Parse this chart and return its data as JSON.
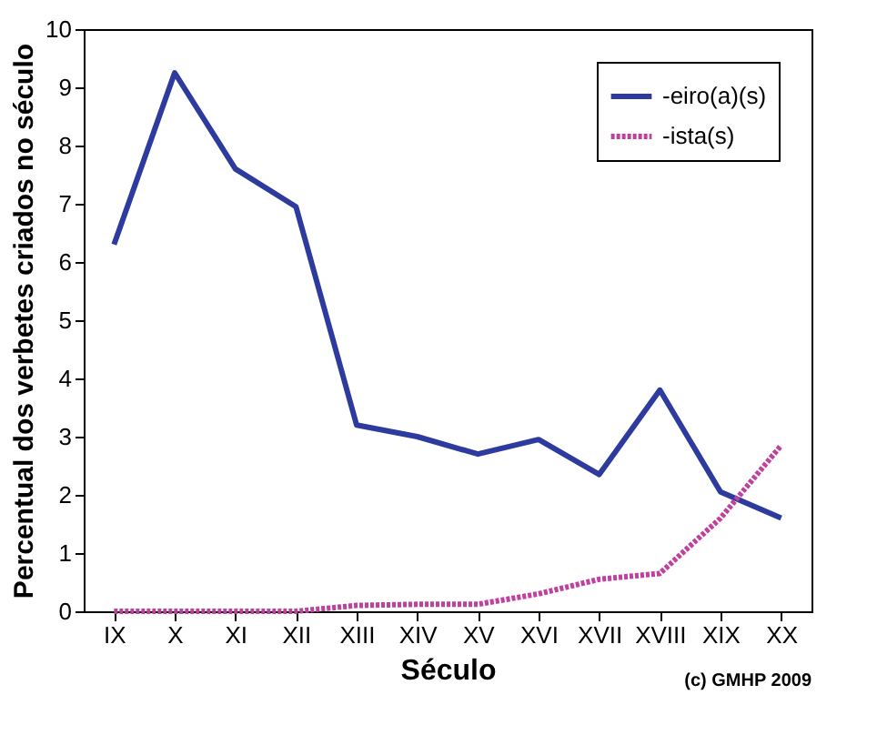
{
  "chart_data": {
    "type": "line",
    "xlabel": "Século",
    "ylabel": "Percentual dos verbetes criados no século",
    "categories": [
      "IX",
      "X",
      "XI",
      "XII",
      "XIII",
      "XIV",
      "XV",
      "XVI",
      "XVII",
      "XVIII",
      "XIX",
      "XX"
    ],
    "series": [
      {
        "name": "-eiro(a)(s)",
        "color": "#2e3b9e",
        "line_style": "solid",
        "values": [
          6.3,
          9.25,
          7.6,
          6.95,
          3.2,
          3.0,
          2.7,
          2.95,
          2.35,
          3.8,
          2.05,
          1.6
        ]
      },
      {
        "name": "-ista(s)",
        "color": "#c040a0",
        "line_style": "dotted",
        "values": [
          0,
          0,
          0,
          0,
          0.1,
          0.12,
          0.12,
          0.3,
          0.55,
          0.65,
          1.6,
          2.85
        ]
      }
    ],
    "ylim": [
      0,
      10
    ],
    "yticks": [
      0,
      1,
      2,
      3,
      4,
      5,
      6,
      7,
      8,
      9,
      10
    ],
    "grid": false,
    "legend": "top right",
    "marker": "none",
    "annotations": [
      "(c) GMHP 2009"
    ]
  }
}
